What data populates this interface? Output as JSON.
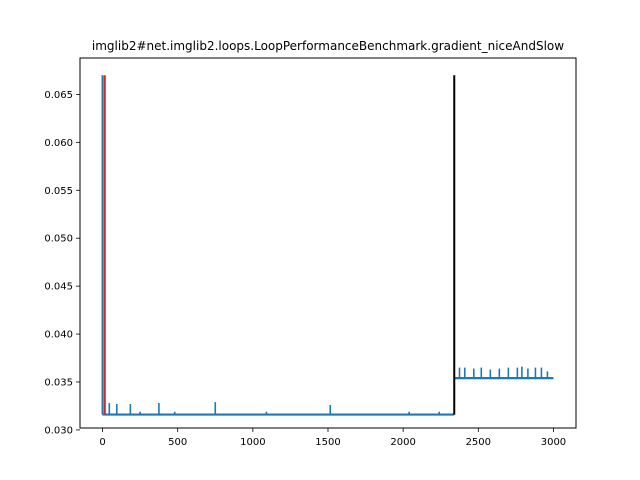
{
  "chart_data": {
    "type": "line",
    "title": "imglib2#net.imglib2.loops.LoopPerformanceBenchmark.gradient_niceAndSlow",
    "xlabel": "",
    "ylabel": "",
    "xlim": [
      -150,
      3150
    ],
    "ylim": [
      0.0302,
      0.0688
    ],
    "xticks": [
      0,
      500,
      1000,
      1500,
      2000,
      2500,
      3000
    ],
    "xtick_labels": [
      "0",
      "500",
      "1000",
      "1500",
      "2000",
      "2500",
      "3000"
    ],
    "yticks": [
      0.03,
      0.035,
      0.04,
      0.045,
      0.05,
      0.055,
      0.06,
      0.065
    ],
    "ytick_labels": [
      "0.030",
      "0.035",
      "0.040",
      "0.045",
      "0.050",
      "0.055",
      "0.060",
      "0.065"
    ],
    "grid": false,
    "series": [
      {
        "color": "#1f77b4",
        "baseline_segments": [
          {
            "x_start": 0,
            "x_end": 2340,
            "base": 0.0316
          },
          {
            "x_start": 2340,
            "x_end": 3000,
            "base": 0.0354
          }
        ],
        "initial_spike": {
          "x": 0,
          "y": 0.067
        },
        "spikes": [
          {
            "x": 45,
            "y": 0.0328
          },
          {
            "x": 95,
            "y": 0.0327
          },
          {
            "x": 185,
            "y": 0.0327
          },
          {
            "x": 250,
            "y": 0.0319
          },
          {
            "x": 375,
            "y": 0.0328
          },
          {
            "x": 480,
            "y": 0.0319
          },
          {
            "x": 750,
            "y": 0.0329
          },
          {
            "x": 1090,
            "y": 0.0319
          },
          {
            "x": 1515,
            "y": 0.0326
          },
          {
            "x": 2040,
            "y": 0.0319
          },
          {
            "x": 2240,
            "y": 0.0319
          },
          {
            "x": 2375,
            "y": 0.0365
          },
          {
            "x": 2410,
            "y": 0.0365
          },
          {
            "x": 2470,
            "y": 0.0364
          },
          {
            "x": 2520,
            "y": 0.0365
          },
          {
            "x": 2580,
            "y": 0.0363
          },
          {
            "x": 2640,
            "y": 0.0364
          },
          {
            "x": 2700,
            "y": 0.0365
          },
          {
            "x": 2760,
            "y": 0.0365
          },
          {
            "x": 2790,
            "y": 0.0366
          },
          {
            "x": 2830,
            "y": 0.0364
          },
          {
            "x": 2880,
            "y": 0.0365
          },
          {
            "x": 2920,
            "y": 0.0365
          },
          {
            "x": 2960,
            "y": 0.0361
          }
        ]
      }
    ],
    "vertical_lines": [
      {
        "x": 15,
        "y_from": 0.0316,
        "y_to": 0.067,
        "color": "#d62728"
      },
      {
        "x": 2340,
        "y_from": 0.0316,
        "y_to": 0.067,
        "color": "#000000"
      }
    ]
  }
}
